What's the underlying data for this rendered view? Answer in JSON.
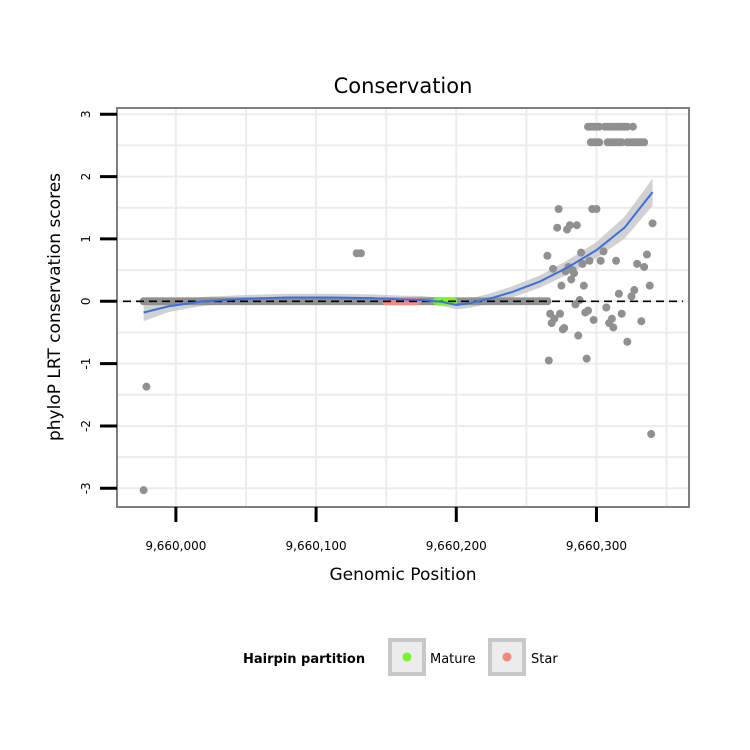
{
  "chart_data": {
    "type": "scatter",
    "title": "Conservation",
    "xlabel": "Genomic Position",
    "ylabel": "phyloP LRT conservation scores",
    "xlim": [
      9659958,
      9660366
    ],
    "ylim": [
      -3.3,
      3.1
    ],
    "x_ticks": [
      {
        "value": 9660000,
        "label": "9,660,000"
      },
      {
        "value": 9660100,
        "label": "9,660,100"
      },
      {
        "value": 9660200,
        "label": "9,660,200"
      },
      {
        "value": 9660300,
        "label": "9,660,300"
      }
    ],
    "y_ticks": [
      {
        "value": -3,
        "label": "-3"
      },
      {
        "value": -2,
        "label": "-2"
      },
      {
        "value": -1,
        "label": "-1"
      },
      {
        "value": 0,
        "label": "0"
      },
      {
        "value": 1,
        "label": "1"
      },
      {
        "value": 2,
        "label": "2"
      },
      {
        "value": 3,
        "label": "3"
      }
    ],
    "reference_line": {
      "y": 0,
      "style": "dashed"
    },
    "grid": true,
    "colors": {
      "points": "#909090",
      "smooth": "#3d6fe0",
      "ribbon": "#c9c9c9",
      "mature": "#77f52a",
      "star": "#f08a7c",
      "panel_border": "#7f7f7f",
      "grid": "#ececec"
    },
    "baseline_points": {
      "from": 9659977,
      "to": 9660265,
      "step": 2,
      "y": 0
    },
    "outlier_points": [
      {
        "x": 9659977,
        "y": -3.03
      },
      {
        "x": 9659979,
        "y": -1.37
      },
      {
        "x": 9660129,
        "y": 0.77
      },
      {
        "x": 9660132,
        "y": 0.77
      },
      {
        "x": 9660265,
        "y": 0.73
      },
      {
        "x": 9660266,
        "y": -0.95
      },
      {
        "x": 9660267,
        "y": -0.2
      },
      {
        "x": 9660268,
        "y": -0.35
      },
      {
        "x": 9660269,
        "y": 0.52
      },
      {
        "x": 9660270,
        "y": -0.28
      },
      {
        "x": 9660272,
        "y": 1.18
      },
      {
        "x": 9660273,
        "y": 1.48
      },
      {
        "x": 9660274,
        "y": -0.2
      },
      {
        "x": 9660275,
        "y": 0.25
      },
      {
        "x": 9660276,
        "y": -0.45
      },
      {
        "x": 9660277,
        "y": -0.43
      },
      {
        "x": 9660278,
        "y": 0.48
      },
      {
        "x": 9660279,
        "y": 1.15
      },
      {
        "x": 9660280,
        "y": 0.55
      },
      {
        "x": 9660281,
        "y": 1.22
      },
      {
        "x": 9660282,
        "y": 0.35
      },
      {
        "x": 9660283,
        "y": 0.5
      },
      {
        "x": 9660284,
        "y": 0.45
      },
      {
        "x": 9660285,
        "y": -0.05
      },
      {
        "x": 9660286,
        "y": 1.22
      },
      {
        "x": 9660287,
        "y": -0.55
      },
      {
        "x": 9660288,
        "y": 0.02
      },
      {
        "x": 9660289,
        "y": 0.78
      },
      {
        "x": 9660290,
        "y": 0.6
      },
      {
        "x": 9660291,
        "y": 0.25
      },
      {
        "x": 9660292,
        "y": -0.18
      },
      {
        "x": 9660293,
        "y": -0.92
      },
      {
        "x": 9660294,
        "y": -0.15
      },
      {
        "x": 9660295,
        "y": 0.65
      },
      {
        "x": 9660297,
        "y": 1.48
      },
      {
        "x": 9660298,
        "y": -0.3
      },
      {
        "x": 9660300,
        "y": 1.48
      },
      {
        "x": 9660303,
        "y": 0.65
      },
      {
        "x": 9660305,
        "y": 0.8
      },
      {
        "x": 9660307,
        "y": -0.1
      },
      {
        "x": 9660309,
        "y": -0.35
      },
      {
        "x": 9660311,
        "y": -0.28
      },
      {
        "x": 9660312,
        "y": -0.42
      },
      {
        "x": 9660314,
        "y": 0.65
      },
      {
        "x": 9660316,
        "y": 0.12
      },
      {
        "x": 9660318,
        "y": -0.2
      },
      {
        "x": 9660322,
        "y": -0.65
      },
      {
        "x": 9660325,
        "y": 0.08
      },
      {
        "x": 9660327,
        "y": 0.18
      },
      {
        "x": 9660329,
        "y": 0.6
      },
      {
        "x": 9660332,
        "y": -0.32
      },
      {
        "x": 9660334,
        "y": 0.55
      },
      {
        "x": 9660336,
        "y": 0.75
      },
      {
        "x": 9660338,
        "y": 0.25
      },
      {
        "x": 9660339,
        "y": -2.13
      },
      {
        "x": 9660340,
        "y": 1.25
      }
    ],
    "high_rows": [
      {
        "y": 2.8,
        "x": [
          9660294,
          9660296,
          9660298,
          9660300,
          9660302,
          9660306,
          9660308,
          9660310,
          9660312,
          9660314,
          9660316,
          9660318,
          9660320,
          9660322,
          9660326
        ]
      },
      {
        "y": 2.55,
        "x": [
          9660296,
          9660298,
          9660300,
          9660302,
          9660308,
          9660310,
          9660312,
          9660314,
          9660316,
          9660318,
          9660322,
          9660324,
          9660326,
          9660328,
          9660330,
          9660332,
          9660334
        ]
      }
    ],
    "mature_region": {
      "x": [
        9660186,
        9660198
      ],
      "y": 0
    },
    "star_region": {
      "x": [
        9660150,
        9660172
      ],
      "y": 0
    },
    "smooth_curve": [
      {
        "x": 9659977,
        "y": -0.18
      },
      {
        "x": 9659995,
        "y": -0.08
      },
      {
        "x": 9660020,
        "y": 0.0
      },
      {
        "x": 9660050,
        "y": 0.04
      },
      {
        "x": 9660080,
        "y": 0.06
      },
      {
        "x": 9660110,
        "y": 0.06
      },
      {
        "x": 9660140,
        "y": 0.05
      },
      {
        "x": 9660160,
        "y": 0.03
      },
      {
        "x": 9660175,
        "y": 0.02
      },
      {
        "x": 9660190,
        "y": -0.01
      },
      {
        "x": 9660200,
        "y": -0.06
      },
      {
        "x": 9660210,
        "y": -0.03
      },
      {
        "x": 9660225,
        "y": 0.05
      },
      {
        "x": 9660240,
        "y": 0.15
      },
      {
        "x": 9660260,
        "y": 0.32
      },
      {
        "x": 9660280,
        "y": 0.55
      },
      {
        "x": 9660300,
        "y": 0.82
      },
      {
        "x": 9660320,
        "y": 1.18
      },
      {
        "x": 9660340,
        "y": 1.75
      }
    ],
    "ribbon_width": [
      {
        "x": 9659977,
        "w": 0.14
      },
      {
        "x": 9660000,
        "w": 0.08
      },
      {
        "x": 9660050,
        "w": 0.06
      },
      {
        "x": 9660150,
        "w": 0.06
      },
      {
        "x": 9660200,
        "w": 0.07
      },
      {
        "x": 9660260,
        "w": 0.1
      },
      {
        "x": 9660300,
        "w": 0.13
      },
      {
        "x": 9660340,
        "w": 0.22
      }
    ],
    "legend": {
      "title": "Hairpin partition",
      "items": [
        {
          "label": "Mature",
          "color": "#77f52a"
        },
        {
          "label": "Star",
          "color": "#f08a7c"
        }
      ]
    }
  }
}
